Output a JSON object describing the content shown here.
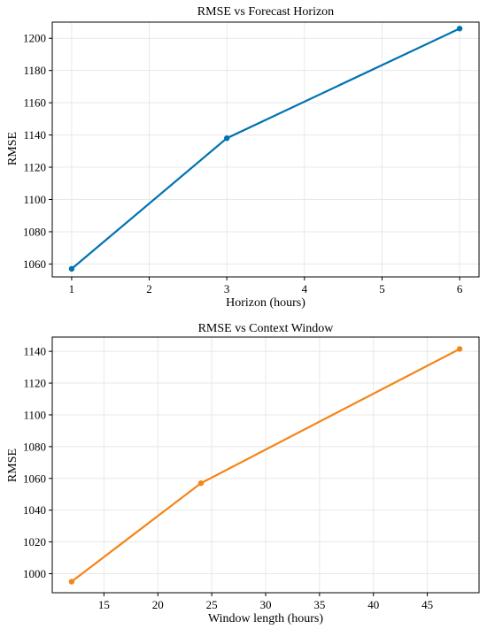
{
  "chart_data": [
    {
      "type": "line",
      "title": "RMSE vs Forecast Horizon",
      "xlabel": "Horizon (hours)",
      "ylabel": "RMSE",
      "x": [
        1,
        3,
        6
      ],
      "series": [
        {
          "values": [
            1057,
            1138,
            1206
          ],
          "color": "#0072b2"
        }
      ],
      "xlim": [
        0.75,
        6.25
      ],
      "ylim": [
        1052,
        1210
      ],
      "xticks": [
        1,
        2,
        3,
        4,
        5,
        6
      ],
      "yticks": [
        1060,
        1080,
        1100,
        1120,
        1140,
        1160,
        1180,
        1200
      ],
      "grid": true,
      "markers": true
    },
    {
      "type": "line",
      "title": "RMSE vs Context Window",
      "xlabel": "Window length (hours)",
      "ylabel": "RMSE",
      "x": [
        12,
        24,
        48
      ],
      "series": [
        {
          "values": [
            995,
            1057,
            1141.5
          ],
          "color": "#f58518"
        }
      ],
      "xlim": [
        10.2,
        49.8
      ],
      "ylim": [
        988,
        1149
      ],
      "xticks": [
        15,
        20,
        25,
        30,
        35,
        40,
        45
      ],
      "yticks": [
        1000,
        1020,
        1040,
        1060,
        1080,
        1100,
        1120,
        1140
      ],
      "grid": true,
      "markers": true
    }
  ]
}
